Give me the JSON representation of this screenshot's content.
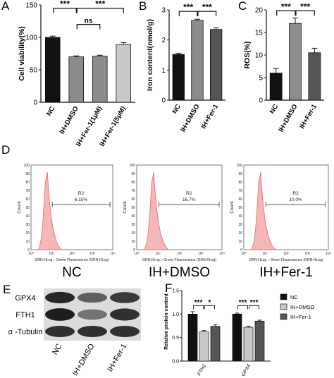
{
  "colors": {
    "black": "#111111",
    "dark_gray": "#555555",
    "mid_gray": "#8c8c8c",
    "light_gray": "#c8c8c8",
    "hist_fill": "#f4b6b6",
    "hist_line": "#e06b6b"
  },
  "panels": {
    "A": "A",
    "B": "B",
    "C": "C",
    "D": "D",
    "E": "E",
    "F": "F"
  },
  "chart_data": [
    {
      "id": "A",
      "type": "bar",
      "categories": [
        "NC",
        "IH+DMSO",
        "IH+Fer-1(1μM)",
        "IH+Fer-1(5μM)"
      ],
      "values": [
        100,
        70,
        71,
        89
      ],
      "errors": [
        2,
        1.5,
        1.5,
        3
      ],
      "ylabel": "Cell viability(%)",
      "ylim": [
        0,
        150
      ],
      "yticks": [
        "0",
        "50",
        "100",
        "150"
      ],
      "bar_colors": [
        "#111111",
        "#8c8c8c",
        "#8c8c8c",
        "#c8c8c8"
      ],
      "significance": [
        {
          "from": 0,
          "to": 1,
          "label": "***",
          "level": 145
        },
        {
          "from": 1,
          "to": 3,
          "label": "***",
          "level": 145
        },
        {
          "from": 1,
          "to": 2,
          "label": "ns",
          "level": 120
        }
      ]
    },
    {
      "id": "B",
      "type": "bar",
      "categories": [
        "NC",
        "IH+DMSO",
        "IH+Fer-1"
      ],
      "values": [
        1.52,
        2.65,
        2.35
      ],
      "errors": [
        0.04,
        0.04,
        0.05
      ],
      "ylabel": "Iron content(nmol/g)",
      "ylim": [
        0,
        3
      ],
      "yticks": [
        "0",
        "1",
        "2",
        "3"
      ],
      "bar_colors": [
        "#111111",
        "#8c8c8c",
        "#555555"
      ],
      "significance": [
        {
          "from": 0,
          "to": 1,
          "label": "***",
          "level": 2.95
        },
        {
          "from": 1,
          "to": 2,
          "label": "***",
          "level": 2.95
        }
      ]
    },
    {
      "id": "C",
      "type": "bar",
      "categories": [
        "NC",
        "IH+DMSO",
        "IH+Fer-1"
      ],
      "values": [
        6,
        17,
        10.5
      ],
      "errors": [
        1,
        1.2,
        1
      ],
      "ylabel": "ROS(%)",
      "ylim": [
        0,
        20
      ],
      "yticks": [
        "0",
        "5",
        "10",
        "15",
        "20"
      ],
      "bar_colors": [
        "#111111",
        "#8c8c8c",
        "#555555"
      ],
      "significance": [
        {
          "from": 0,
          "to": 1,
          "label": "***",
          "level": 19.8
        },
        {
          "from": 1,
          "to": 2,
          "label": "***",
          "level": 19.8
        }
      ]
    },
    {
      "id": "F",
      "type": "bar",
      "categories": [
        "FTH1",
        "GPX4"
      ],
      "series": [
        {
          "name": "NC",
          "values": [
            1.0,
            1.0
          ],
          "errors": [
            0.05,
            0.02
          ]
        },
        {
          "name": "IH+DMSO",
          "values": [
            0.62,
            0.72
          ],
          "errors": [
            0.03,
            0.02
          ]
        },
        {
          "name": "IH+Fer-1",
          "values": [
            0.74,
            0.85
          ],
          "errors": [
            0.03,
            0.02
          ]
        }
      ],
      "ylabel": "Relative protein content",
      "ylim": [
        0,
        1.5
      ],
      "yticks": [
        "0.0",
        "0.5",
        "1.0",
        "1.5"
      ],
      "series_colors": [
        "#111111",
        "#c8c8c8",
        "#555555"
      ],
      "legend_position": "right",
      "significance": [
        {
          "group": 0,
          "from": 0,
          "to": 1,
          "label": "***",
          "level": 1.18
        },
        {
          "group": 0,
          "from": 1,
          "to": 2,
          "label": "*",
          "level": 1.18
        },
        {
          "group": 1,
          "from": 0,
          "to": 1,
          "label": "***",
          "level": 1.18
        },
        {
          "group": 1,
          "from": 1,
          "to": 2,
          "label": "***",
          "level": 1.18
        }
      ]
    }
  ],
  "flow": {
    "ylabel": "Count",
    "xlabel": "GRN-HLog :: Green Fluorescence (GRN-HLog)",
    "gate": "R2",
    "xticks": [
      "10⁰",
      "10¹",
      "10²",
      "10³",
      "10⁴"
    ],
    "yticks": [
      "100",
      "90",
      "80",
      "70",
      "60",
      "50",
      "40",
      "30",
      "20",
      "10",
      "0"
    ],
    "plots": [
      {
        "caption": "NC",
        "percent": "6.15%"
      },
      {
        "caption": "IH+DMSO",
        "percent": "16.7%"
      },
      {
        "caption": "IH+Fer-1",
        "percent": "10.0%"
      }
    ]
  },
  "western": {
    "proteins": [
      "GPX4",
      "FTH1",
      "α -Tubulin"
    ],
    "lanes": [
      "NC",
      "IH+DMSO",
      "IH+Fer-1"
    ],
    "intensity": [
      [
        0.85,
        0.55,
        0.75
      ],
      [
        0.9,
        0.45,
        0.8
      ],
      [
        0.8,
        0.8,
        0.8
      ]
    ]
  }
}
